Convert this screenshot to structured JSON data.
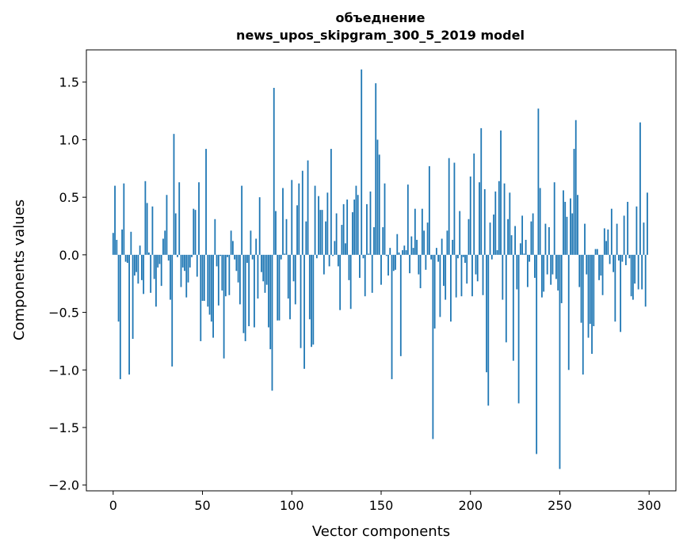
{
  "chart_data": {
    "type": "bar",
    "title_line1": "объеднение",
    "title_line2": "news_upos_skipgram_300_5_2019 model",
    "xlabel": "Vector components",
    "ylabel": "Components values",
    "xlim": [
      -15,
      315
    ],
    "ylim": [
      -2.05,
      1.78
    ],
    "xticks": [
      0,
      50,
      100,
      150,
      200,
      250,
      300
    ],
    "xtick_labels": [
      "0",
      "50",
      "100",
      "150",
      "200",
      "250",
      "300"
    ],
    "yticks": [
      -2.0,
      -1.5,
      -1.0,
      -0.5,
      0.0,
      0.5,
      1.0,
      1.5
    ],
    "ytick_labels": [
      "−2.0",
      "−1.5",
      "−1.0",
      "−0.5",
      "0.0",
      "0.5",
      "1.0",
      "1.5"
    ],
    "bar_color": "#1f77b4",
    "values": [
      0.19,
      0.6,
      0.13,
      -0.58,
      -1.08,
      0.22,
      0.62,
      -0.06,
      -0.07,
      -1.04,
      0.2,
      -0.73,
      -0.18,
      -0.15,
      -0.25,
      0.08,
      -0.22,
      -0.34,
      0.64,
      0.45,
      0.02,
      -0.33,
      0.42,
      -0.21,
      -0.45,
      -0.11,
      -0.08,
      -0.27,
      0.14,
      0.21,
      0.52,
      -0.05,
      -0.39,
      -0.97,
      1.05,
      0.36,
      -0.02,
      0.63,
      -0.28,
      -0.11,
      -0.14,
      -0.37,
      -0.24,
      -0.11,
      -0.02,
      0.4,
      0.39,
      -0.19,
      0.63,
      -0.75,
      -0.4,
      -0.4,
      0.92,
      -0.45,
      -0.52,
      -0.58,
      -0.72,
      0.31,
      -0.1,
      -0.44,
      -0.01,
      -0.31,
      -0.9,
      -0.36,
      -0.02,
      -0.35,
      0.21,
      0.12,
      -0.04,
      -0.14,
      -0.24,
      -0.43,
      0.6,
      -0.68,
      -0.75,
      -0.07,
      -0.62,
      0.21,
      -0.04,
      -0.63,
      0.14,
      -0.38,
      0.5,
      -0.15,
      -0.23,
      -0.33,
      -0.26,
      -0.63,
      -0.82,
      -1.18,
      1.45,
      0.38,
      -0.57,
      -0.57,
      -0.04,
      0.58,
      0.01,
      0.31,
      -0.38,
      -0.56,
      0.65,
      -0.23,
      -0.43,
      0.43,
      0.62,
      -0.81,
      0.73,
      -0.99,
      0.29,
      0.82,
      -0.56,
      -0.8,
      -0.78,
      0.6,
      -0.03,
      0.51,
      0.39,
      0.39,
      -0.17,
      0.29,
      0.54,
      -0.1,
      0.92,
      -0.01,
      0.12,
      0.36,
      -0.1,
      -0.48,
      0.26,
      0.44,
      0.1,
      0.48,
      -0.22,
      -0.47,
      0.37,
      0.48,
      0.6,
      0.52,
      -0.2,
      1.61,
      -0.03,
      -0.36,
      0.44,
      0.01,
      0.55,
      -0.33,
      0.24,
      1.49,
      1.0,
      0.87,
      -0.26,
      0.24,
      0.62,
      -0.01,
      -0.18,
      0.06,
      -1.08,
      -0.14,
      -0.13,
      0.18,
      0.02,
      -0.88,
      0.04,
      0.08,
      0.04,
      0.61,
      -0.16,
      0.16,
      0.06,
      0.4,
      0.13,
      -0.17,
      -0.29,
      0.4,
      0.21,
      -0.13,
      0.28,
      0.77,
      -0.04,
      -1.6,
      -0.64,
      0.06,
      -0.06,
      -0.54,
      0.14,
      -0.27,
      -0.39,
      0.21,
      0.84,
      -0.58,
      0.13,
      0.8,
      -0.37,
      -0.03,
      0.38,
      -0.36,
      -0.02,
      -0.07,
      -0.25,
      0.31,
      0.68,
      -0.36,
      0.88,
      -0.17,
      -0.23,
      0.63,
      1.1,
      -0.35,
      0.57,
      -1.02,
      -1.31,
      0.28,
      -0.04,
      0.35,
      0.55,
      0.04,
      0.64,
      1.08,
      -0.39,
      0.62,
      -0.76,
      0.31,
      0.54,
      0.17,
      -0.92,
      0.25,
      -0.3,
      -1.29,
      0.1,
      0.34,
      0.01,
      0.13,
      -0.28,
      -0.06,
      0.29,
      0.36,
      -0.2,
      -1.73,
      1.27,
      0.58,
      -0.37,
      -0.32,
      0.27,
      -0.17,
      0.24,
      -0.26,
      -0.17,
      0.63,
      -0.21,
      -0.31,
      -1.86,
      -0.42,
      0.56,
      0.46,
      0.33,
      -1.0,
      0.49,
      0.36,
      0.92,
      1.17,
      0.52,
      -0.28,
      -0.59,
      -1.04,
      0.27,
      -0.17,
      -0.72,
      -0.6,
      -0.86,
      -0.62,
      0.05,
      0.05,
      -0.22,
      -0.18,
      -0.35,
      0.23,
      0.12,
      0.22,
      -0.08,
      0.4,
      -0.15,
      -0.58,
      0.27,
      -0.05,
      -0.67,
      -0.06,
      0.34,
      -0.09,
      0.46,
      -0.03,
      -0.36,
      -0.39,
      -0.25,
      0.42,
      -0.3,
      1.15,
      -0.3,
      0.28,
      -0.45,
      0.54
    ]
  }
}
